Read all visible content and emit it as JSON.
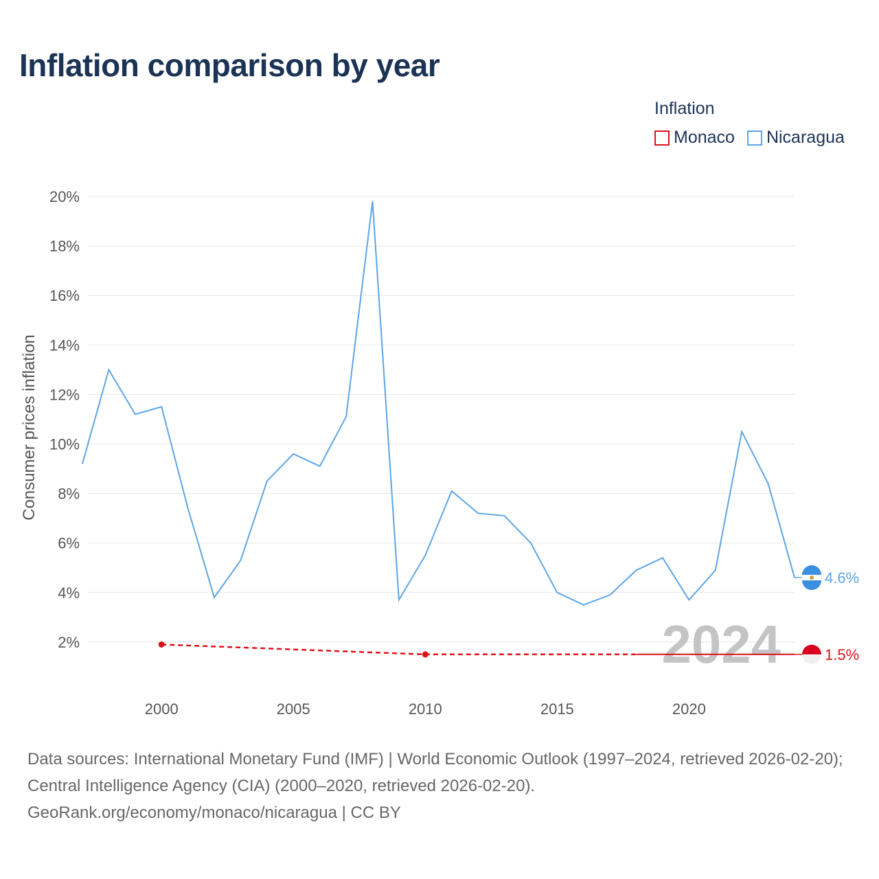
{
  "title": "Inflation comparison by year",
  "legend": {
    "title": "Inflation",
    "items": [
      {
        "label": "Monaco",
        "color": "#e0101a"
      },
      {
        "label": "Nicaragua",
        "color": "#5ca5e6"
      }
    ]
  },
  "chart_data": {
    "type": "line",
    "title": "Inflation comparison by year",
    "xlabel": "",
    "ylabel": "Consumer prices inflation",
    "xlim": [
      1997,
      2024
    ],
    "ylim": [
      0,
      20
    ],
    "y_ticks": [
      2,
      4,
      6,
      8,
      10,
      12,
      14,
      16,
      18,
      20
    ],
    "y_tick_labels": [
      "2%",
      "4%",
      "6%",
      "8%",
      "10%",
      "12%",
      "14%",
      "16%",
      "18%",
      "20%"
    ],
    "x_ticks": [
      2000,
      2005,
      2010,
      2015,
      2020
    ],
    "x_tick_labels": [
      "2000",
      "2005",
      "2010",
      "2015",
      "2020"
    ],
    "grid": true,
    "current_year": "2024",
    "series": [
      {
        "name": "Nicaragua",
        "color": "#5ca5e6",
        "end_label": "4.6%",
        "x": [
          1997,
          1998,
          1999,
          2000,
          2001,
          2002,
          2003,
          2004,
          2005,
          2006,
          2007,
          2008,
          2009,
          2010,
          2011,
          2012,
          2013,
          2014,
          2015,
          2016,
          2017,
          2018,
          2019,
          2020,
          2021,
          2022,
          2023,
          2024
        ],
        "values": [
          9.2,
          13.0,
          11.2,
          11.5,
          7.4,
          3.8,
          5.3,
          8.5,
          9.6,
          9.1,
          11.1,
          19.8,
          3.7,
          5.5,
          8.1,
          7.2,
          7.1,
          6.0,
          4.0,
          3.5,
          3.9,
          4.9,
          5.4,
          3.7,
          4.9,
          10.5,
          8.4,
          4.6
        ]
      },
      {
        "name": "Monaco",
        "color": "#e0101a",
        "end_label": "1.5%",
        "x": [
          2000,
          2010,
          2018,
          2024
        ],
        "values": [
          1.9,
          1.5,
          1.5,
          1.5
        ],
        "dashed_until": 2018
      }
    ]
  },
  "footer": {
    "line1": "Data sources: International Monetary Fund (IMF) | World Economic Outlook (1997–2024, retrieved 2026-02-20); Central Intelligence Agency (CIA) (2000–2020, retrieved 2026-02-20).",
    "line2": "GeoRank.org/economy/monaco/nicaragua | CC BY"
  }
}
